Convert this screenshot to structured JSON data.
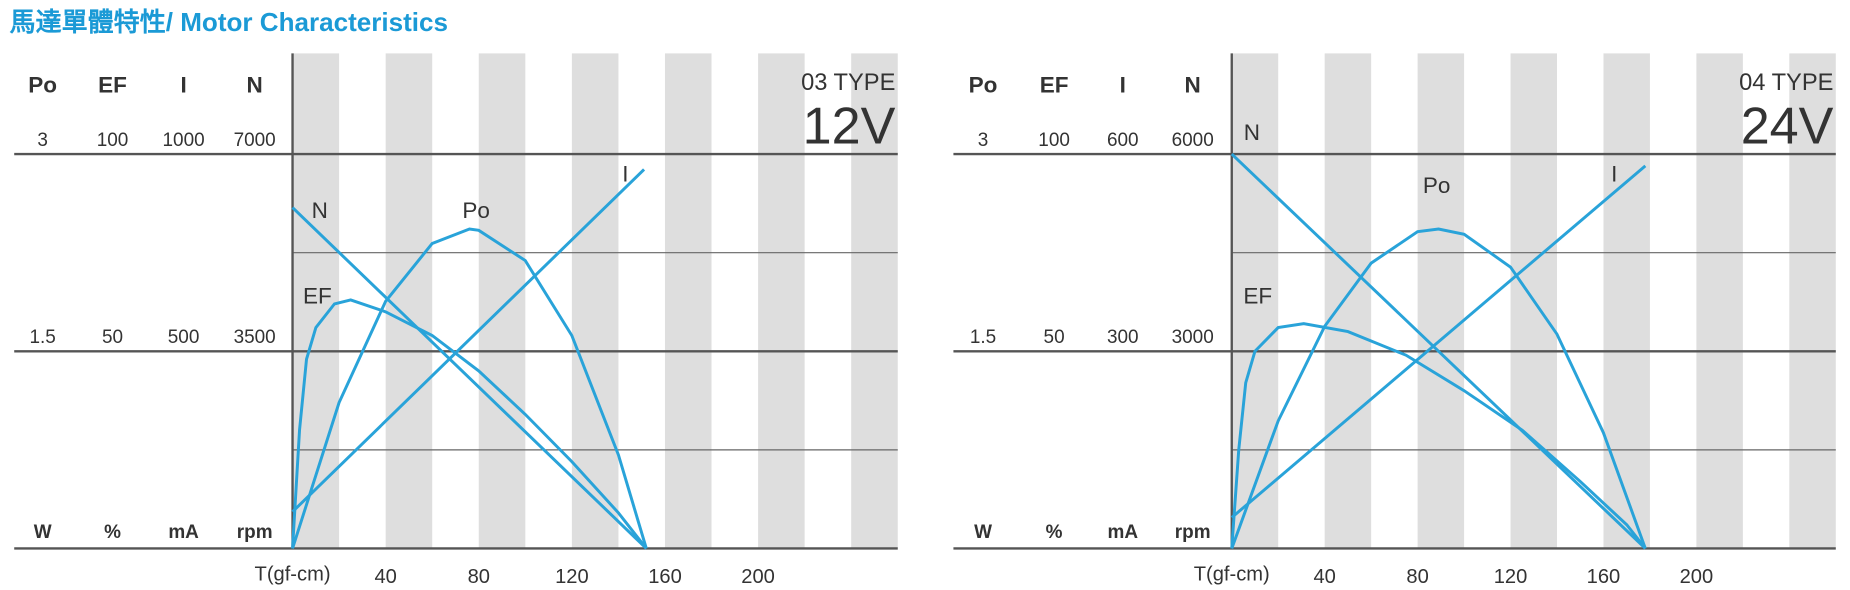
{
  "title": "馬達單體特性/ Motor Characteristics",
  "chart_data": [
    {
      "type": "line",
      "type_label": "03 TYPE",
      "voltage": "12V",
      "x_label": "T(gf-cm)",
      "xlim": [
        0,
        260
      ],
      "xticks": [
        40,
        80,
        120,
        160,
        200
      ],
      "columns": [
        {
          "name": "Po",
          "unit": "W",
          "ylim": [
            0,
            3
          ],
          "yticks": [
            1.5,
            3
          ]
        },
        {
          "name": "EF",
          "unit": "%",
          "ylim": [
            0,
            100
          ],
          "yticks": [
            50,
            100
          ]
        },
        {
          "name": "I",
          "unit": "mA",
          "ylim": [
            0,
            1000
          ],
          "yticks": [
            500,
            1000
          ]
        },
        {
          "name": "N",
          "unit": "rpm",
          "ylim": [
            0,
            7000
          ],
          "yticks": [
            3500,
            7000
          ]
        }
      ],
      "series": [
        {
          "name": "N",
          "color": "#29a3d9",
          "x": [
            0,
            152
          ],
          "values": [
            6050,
            0
          ]
        },
        {
          "name": "I",
          "color": "#29a3d9",
          "x": [
            0,
            151
          ],
          "values": [
            93,
            961
          ]
        },
        {
          "name": "Po",
          "color": "#29a3d9",
          "x": [
            0,
            20,
            40,
            60,
            76,
            80,
            100,
            120,
            140,
            152
          ],
          "values": [
            0,
            1.11,
            1.88,
            2.32,
            2.43,
            2.42,
            2.19,
            1.62,
            0.71,
            0
          ]
        },
        {
          "name": "EF",
          "color": "#29a3d9",
          "x": [
            0,
            3,
            6,
            10,
            18,
            25,
            40,
            60,
            80,
            100,
            120,
            140,
            152
          ],
          "values": [
            0,
            30,
            48,
            56,
            62,
            63,
            60,
            54,
            45,
            34,
            22,
            9,
            0
          ]
        }
      ]
    },
    {
      "type": "line",
      "type_label": "04 TYPE",
      "voltage": "24V",
      "x_label": "T(gf-cm)",
      "xlim": [
        0,
        260
      ],
      "xticks": [
        40,
        80,
        120,
        160,
        200
      ],
      "columns": [
        {
          "name": "Po",
          "unit": "W",
          "ylim": [
            0,
            3
          ],
          "yticks": [
            1.5,
            3
          ]
        },
        {
          "name": "EF",
          "unit": "%",
          "ylim": [
            0,
            100
          ],
          "yticks": [
            50,
            100
          ]
        },
        {
          "name": "I",
          "unit": "mA",
          "ylim": [
            0,
            600
          ],
          "yticks": [
            300,
            600
          ]
        },
        {
          "name": "N",
          "unit": "rpm",
          "ylim": [
            0,
            6000
          ],
          "yticks": [
            3000,
            6000
          ]
        }
      ],
      "series": [
        {
          "name": "N",
          "color": "#29a3d9",
          "x": [
            0,
            178
          ],
          "values": [
            6000,
            0
          ]
        },
        {
          "name": "I",
          "color": "#29a3d9",
          "x": [
            0,
            178
          ],
          "values": [
            47,
            582
          ]
        },
        {
          "name": "Po",
          "color": "#29a3d9",
          "x": [
            0,
            20,
            40,
            60,
            80,
            89,
            100,
            120,
            140,
            160,
            178
          ],
          "values": [
            0,
            0.97,
            1.69,
            2.17,
            2.41,
            2.43,
            2.39,
            2.14,
            1.63,
            0.88,
            0
          ]
        },
        {
          "name": "EF",
          "color": "#29a3d9",
          "x": [
            0,
            3,
            6,
            10,
            20,
            31,
            50,
            75,
            100,
            125,
            150,
            170,
            178
          ],
          "values": [
            0,
            25,
            42,
            50,
            56,
            57,
            55,
            49,
            40,
            30,
            17,
            6,
            0
          ]
        }
      ]
    }
  ]
}
